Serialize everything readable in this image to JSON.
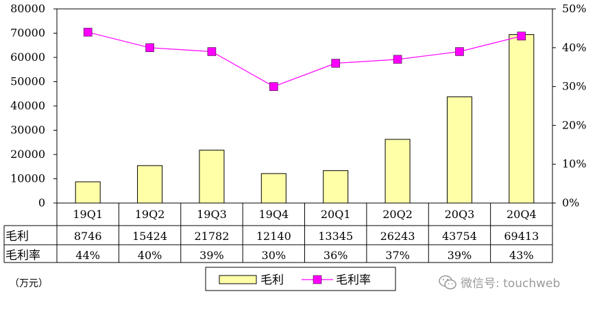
{
  "chart_data": {
    "type": "bar+line",
    "categories": [
      "19Q1",
      "19Q2",
      "19Q3",
      "19Q4",
      "20Q1",
      "20Q2",
      "20Q3",
      "20Q4"
    ],
    "series": [
      {
        "name": "毛利",
        "type": "bar",
        "axis": "left",
        "values": [
          8746,
          15424,
          21782,
          12140,
          13345,
          26243,
          43754,
          69413
        ],
        "color": "#ffffa8"
      },
      {
        "name": "毛利率",
        "type": "line",
        "axis": "right",
        "values": [
          44,
          40,
          39,
          30,
          36,
          37,
          39,
          43
        ],
        "color": "#ff00ff"
      }
    ],
    "left_axis": {
      "ylim": [
        0,
        80000
      ],
      "ticks": [
        "0",
        "10000",
        "20000",
        "30000",
        "40000",
        "50000",
        "60000",
        "70000",
        "80000"
      ]
    },
    "right_axis": {
      "ylim": [
        0,
        50
      ],
      "ticks": [
        "0%",
        "10%",
        "20%",
        "30%",
        "40%",
        "50%"
      ]
    },
    "table": {
      "rows": [
        {
          "label": "毛利",
          "cells": [
            "8746",
            "15424",
            "21782",
            "12140",
            "13345",
            "26243",
            "43754",
            "69413"
          ]
        },
        {
          "label": "毛利率",
          "cells": [
            "44%",
            "40%",
            "39%",
            "30%",
            "36%",
            "37%",
            "39%",
            "43%"
          ]
        }
      ]
    },
    "legend": {
      "placement": "bottom-center",
      "items": [
        "毛利",
        "毛利率"
      ]
    },
    "unit_label": "（万元）",
    "grid": false
  },
  "watermark": {
    "text": "微信号: touchweb"
  }
}
